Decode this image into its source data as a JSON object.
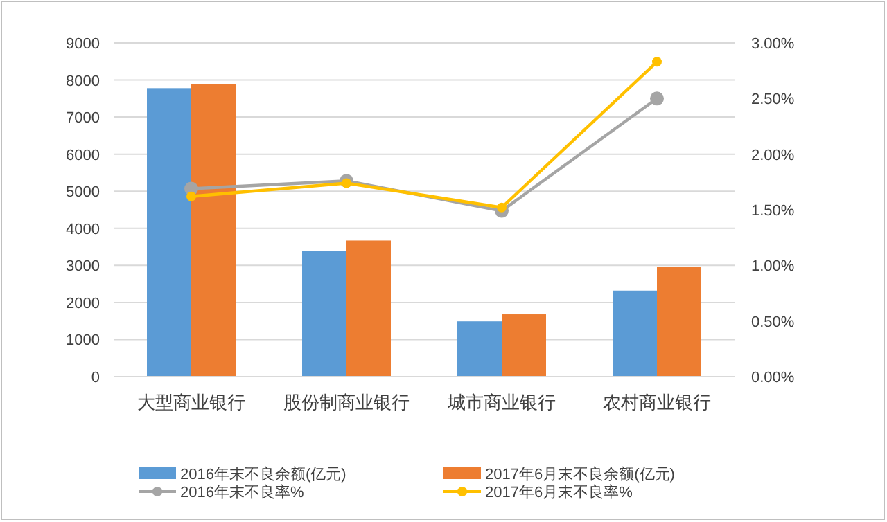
{
  "chart_data": {
    "type": "bar",
    "categories": [
      "大型商业银行",
      "股份制商业银行",
      "城市商业银行",
      "农村商业银行"
    ],
    "series": [
      {
        "name": "2016年末不良余额(亿元)",
        "color": "#5b9bd5",
        "values": [
          7780,
          3380,
          1490,
          2320
        ]
      },
      {
        "name": "2017年6月末不良余额(亿元)",
        "color": "#ed7d31",
        "values": [
          7880,
          3670,
          1680,
          2960
        ]
      },
      {
        "name": "2016年末不良率%",
        "type": "line",
        "axis": "y2",
        "marker": "circle",
        "color": "#a5a5a5",
        "values": [
          1.69,
          1.76,
          1.49,
          2.5
        ]
      },
      {
        "name": "2017年6月末不良率%",
        "type": "line",
        "axis": "y2",
        "marker": "circle",
        "color": "#ffc000",
        "values": [
          1.62,
          1.74,
          1.52,
          2.83
        ]
      }
    ],
    "ylim": [
      0,
      9000
    ],
    "yticks": [
      0,
      1000,
      2000,
      3000,
      4000,
      5000,
      6000,
      7000,
      8000,
      9000
    ],
    "y2lim": [
      0,
      3
    ],
    "y2ticks": [
      {
        "value": 0,
        "label": "0.00%"
      },
      {
        "value": 0.5,
        "label": "0.50%"
      },
      {
        "value": 1,
        "label": "1.00%"
      },
      {
        "value": 1.5,
        "label": "1.50%"
      },
      {
        "value": 2,
        "label": "2.00%"
      },
      {
        "value": 2.5,
        "label": "2.50%"
      },
      {
        "value": 3,
        "label": "3.00%"
      }
    ],
    "grid": "y",
    "legend": "bottom"
  }
}
